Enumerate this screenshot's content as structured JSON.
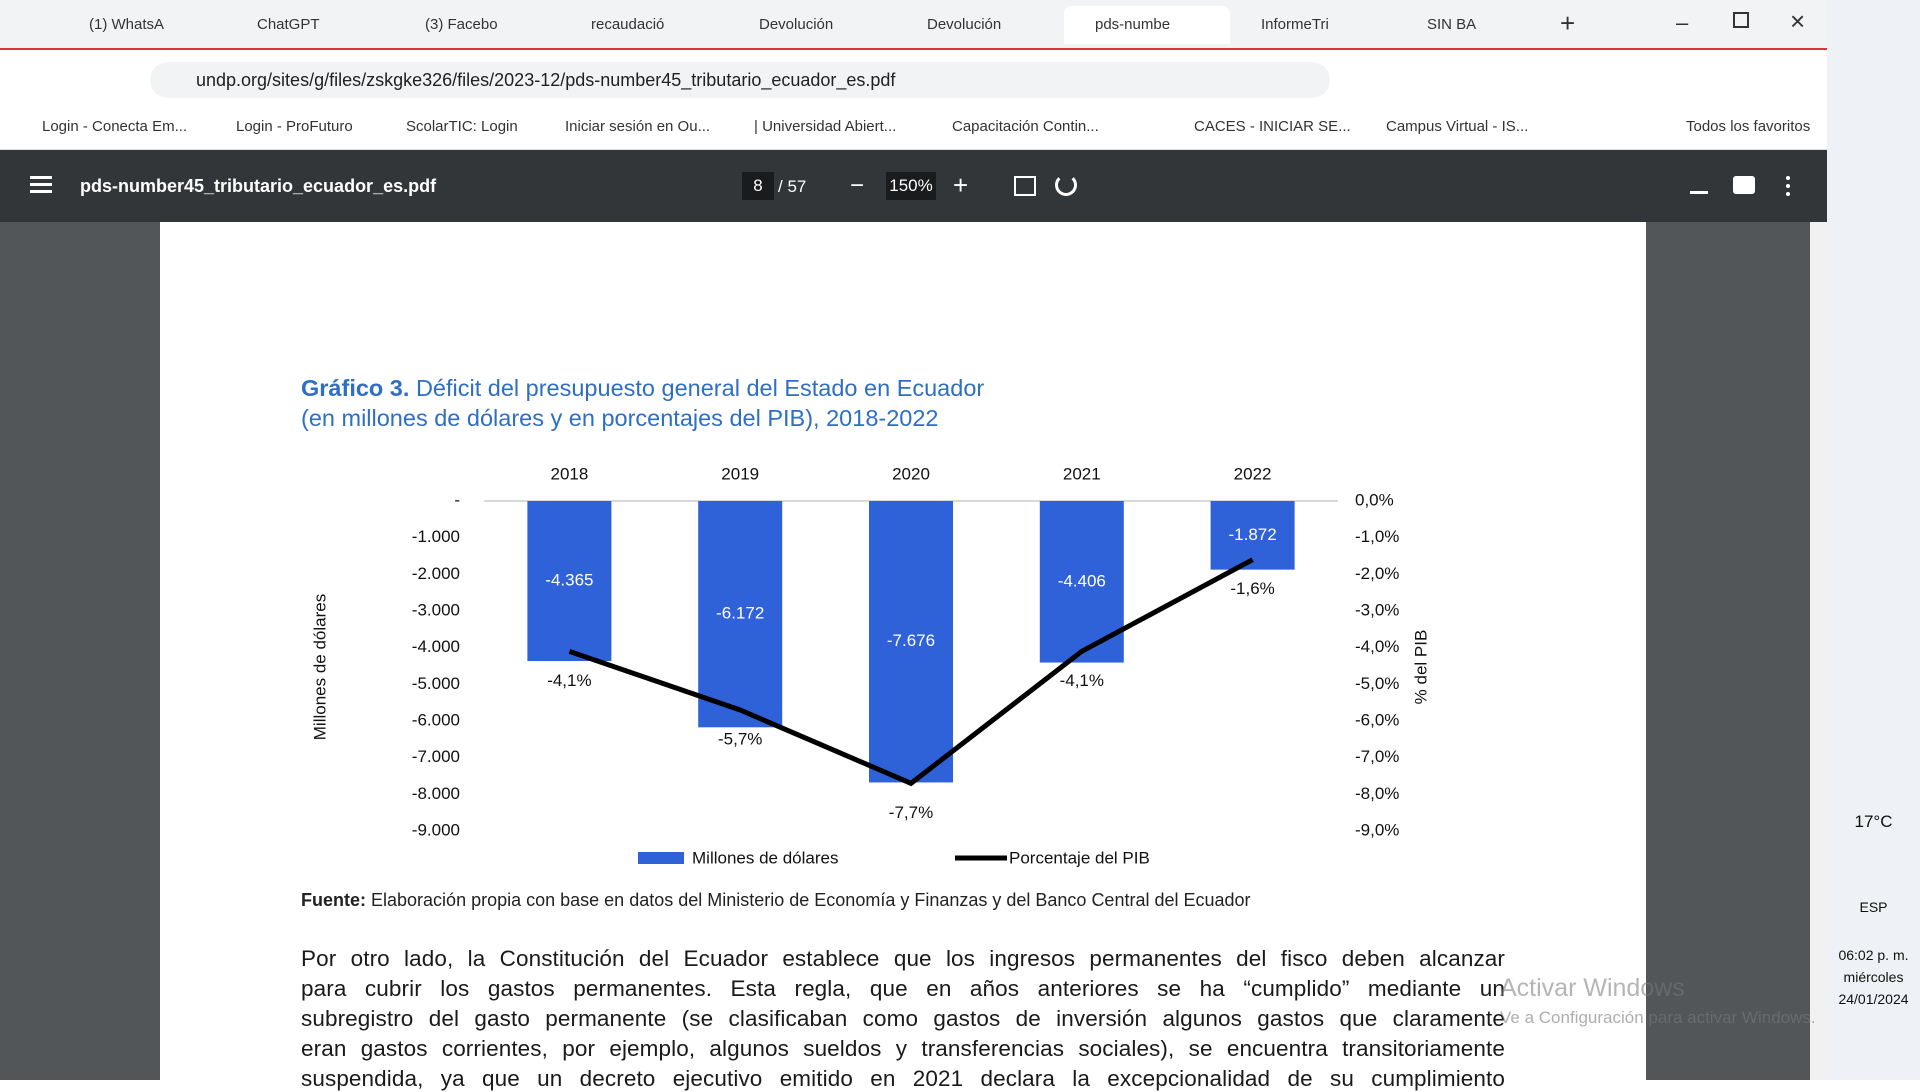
{
  "browser": {
    "tabs": [
      "(1) WhatsA",
      "ChatGPT",
      "(3) Facebo",
      "recaudació",
      "Devolución",
      "Devolución",
      "pds-numbe",
      "InformeTri",
      "SIN BA"
    ],
    "url": "undp.org/sites/g/files/zskgke326/files/2023-12/pds-number45_tributario_ecuador_es.pdf",
    "bookmarks": [
      "Login - Conecta Em...",
      "Login - ProFuturo",
      "ScolarTIC: Login",
      "Iniciar sesión en Ou...",
      "| Universidad Abiert...",
      "Capacitación Contin...",
      "CACES - INICIAR SE...",
      "Campus Virtual - IS..."
    ],
    "all_bookmarks": "Todos los favoritos"
  },
  "pdf_toolbar": {
    "filename": "pds-number45_tributario_ecuador_es.pdf",
    "page": "8",
    "page_count": "/ 57",
    "zoom": "150%"
  },
  "document": {
    "chart_title_prefix": "Gráfico 3.",
    "chart_title_line1": "Déficit del presupuesto general del Estado en Ecuador",
    "chart_title_line2": "(en millones de dólares y en porcentajes del PIB), 2018-2022",
    "source_label": "Fuente:",
    "source_text": "Elaboración propia con base en datos del Ministerio de Economía y Finanzas y del Banco Central del Ecuador",
    "paragraph": [
      "Por otro lado, la Constitución del Ecuador establece que los ingresos permanentes del fisco deben alcanzar",
      "para cubrir los gastos permanentes. Esta regla, que en años anteriores se ha “cumplido” mediante un",
      "subregistro del gasto permanente (se clasificaban como gastos de inversión algunos gastos que claramente",
      "eran gastos corrientes, por ejemplo, algunos sueldos y transferencias sociales), se encuentra transitoriamente",
      "suspendida, ya que un decreto ejecutivo emitido en 2021 declara la excepcionalidad de su cumplimiento"
    ]
  },
  "chart_data": {
    "type": "bar",
    "categories": [
      "2018",
      "2019",
      "2020",
      "2021",
      "2022"
    ],
    "y_label": "Millones de dólares",
    "y2_label": "% del PIB",
    "ylim": [
      -9000,
      0
    ],
    "yticks": [
      {
        "value": 0,
        "label": "-"
      },
      {
        "value": -1000,
        "label": "-1.000"
      },
      {
        "value": -2000,
        "label": "-2.000"
      },
      {
        "value": -3000,
        "label": "-3.000"
      },
      {
        "value": -4000,
        "label": "-4.000"
      },
      {
        "value": -5000,
        "label": "-5.000"
      },
      {
        "value": -6000,
        "label": "-6.000"
      },
      {
        "value": -7000,
        "label": "-7.000"
      },
      {
        "value": -8000,
        "label": "-8.000"
      },
      {
        "value": -9000,
        "label": "-9.000"
      }
    ],
    "y2lim": [
      -9,
      0
    ],
    "y2ticks": [
      {
        "value": 0,
        "label": "0,0%"
      },
      {
        "value": -1,
        "label": "-1,0%"
      },
      {
        "value": -2,
        "label": "-2,0%"
      },
      {
        "value": -3,
        "label": "-3,0%"
      },
      {
        "value": -4,
        "label": "-4,0%"
      },
      {
        "value": -5,
        "label": "-5,0%"
      },
      {
        "value": -6,
        "label": "-6,0%"
      },
      {
        "value": -7,
        "label": "-7,0%"
      },
      {
        "value": -8,
        "label": "-8,0%"
      },
      {
        "value": -9,
        "label": "-9,0%"
      }
    ],
    "series": [
      {
        "name": "Millones de dólares",
        "color": "#2f62d9",
        "values": [
          -4365,
          -6172,
          -7676,
          -4406,
          -1872
        ],
        "value_labels": [
          "-4.365",
          "-6.172",
          "-7.676",
          "-4.406",
          "-1.872"
        ]
      },
      {
        "name": "Porcentaje del PIB",
        "type": "line",
        "axis": "y2",
        "color": "#000000",
        "values": [
          -4.1,
          -5.7,
          -7.7,
          -4.1,
          -1.6
        ],
        "value_labels": [
          "-4,1%",
          "-5,7%",
          "-7,7%",
          "-4,1%",
          "-1,6%"
        ]
      }
    ],
    "grid": false,
    "legend": "bottom"
  },
  "taskbar": {
    "weather": "17°C",
    "language": "ESP",
    "time": "06:02 p. m.",
    "weekday": "miércoles",
    "date": "24/01/2024"
  },
  "watermark": {
    "title": "Activar Windows",
    "text": "Ve a Configuración para activar Windows."
  }
}
